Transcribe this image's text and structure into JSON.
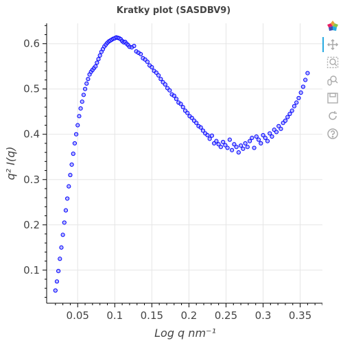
{
  "chart_data": {
    "type": "scatter",
    "title": "Kratky plot (SASDBV9)",
    "xlabel": "Log q nm⁻¹",
    "ylabel": "q² I(q)",
    "xlim": [
      0.01,
      0.38
    ],
    "ylim": [
      0.03,
      0.645
    ],
    "xticks": [
      0.05,
      0.1,
      0.15,
      0.2,
      0.25,
      0.3,
      0.35
    ],
    "xtick_labels": [
      "0.05",
      "0.1",
      "0.15",
      "0.2",
      "0.25",
      "0.3",
      "0.35"
    ],
    "yticks": [
      0.1,
      0.2,
      0.3,
      0.4,
      0.5,
      0.6
    ],
    "ytick_labels": [
      "0.1",
      "0.2",
      "0.3",
      "0.4",
      "0.5",
      "0.6"
    ],
    "grid": true,
    "legend": "none",
    "marker_color": "#0000ff",
    "series": [
      {
        "x": [
          0.02,
          0.022,
          0.024,
          0.026,
          0.028,
          0.03,
          0.032,
          0.034,
          0.036,
          0.038,
          0.04,
          0.042,
          0.044,
          0.046,
          0.048,
          0.05,
          0.052,
          0.054,
          0.056,
          0.058,
          0.06,
          0.062,
          0.064,
          0.066,
          0.068,
          0.07,
          0.072,
          0.074,
          0.076,
          0.078,
          0.08,
          0.082,
          0.084,
          0.086,
          0.088,
          0.09,
          0.092,
          0.094,
          0.096,
          0.098,
          0.1,
          0.102,
          0.104,
          0.106,
          0.108,
          0.11,
          0.112,
          0.114,
          0.116,
          0.118,
          0.12,
          0.123,
          0.126,
          0.129,
          0.132,
          0.135,
          0.138,
          0.141,
          0.144,
          0.147,
          0.15,
          0.153,
          0.156,
          0.159,
          0.162,
          0.165,
          0.168,
          0.171,
          0.174,
          0.177,
          0.18,
          0.183,
          0.186,
          0.189,
          0.192,
          0.195,
          0.198,
          0.201,
          0.204,
          0.207,
          0.21,
          0.213,
          0.216,
          0.219,
          0.222,
          0.225,
          0.228,
          0.231,
          0.234,
          0.237,
          0.24,
          0.243,
          0.246,
          0.249,
          0.252,
          0.255,
          0.258,
          0.261,
          0.264,
          0.267,
          0.27,
          0.273,
          0.276,
          0.279,
          0.282,
          0.285,
          0.288,
          0.291,
          0.294,
          0.297,
          0.3,
          0.303,
          0.306,
          0.309,
          0.312,
          0.315,
          0.318,
          0.321,
          0.324,
          0.327,
          0.33,
          0.333,
          0.336,
          0.339,
          0.342,
          0.345,
          0.348,
          0.351,
          0.354,
          0.357,
          0.36
        ],
        "y": [
          0.055,
          0.075,
          0.098,
          0.125,
          0.15,
          0.178,
          0.205,
          0.232,
          0.258,
          0.285,
          0.31,
          0.333,
          0.357,
          0.38,
          0.4,
          0.42,
          0.44,
          0.457,
          0.472,
          0.487,
          0.5,
          0.512,
          0.522,
          0.532,
          0.538,
          0.542,
          0.546,
          0.55,
          0.558,
          0.566,
          0.574,
          0.582,
          0.588,
          0.594,
          0.598,
          0.602,
          0.605,
          0.607,
          0.609,
          0.611,
          0.612,
          0.614,
          0.613,
          0.612,
          0.61,
          0.606,
          0.603,
          0.604,
          0.6,
          0.597,
          0.593,
          0.592,
          0.595,
          0.583,
          0.58,
          0.577,
          0.568,
          0.565,
          0.56,
          0.552,
          0.548,
          0.54,
          0.536,
          0.53,
          0.522,
          0.515,
          0.51,
          0.502,
          0.497,
          0.488,
          0.485,
          0.478,
          0.47,
          0.467,
          0.46,
          0.452,
          0.447,
          0.44,
          0.436,
          0.43,
          0.425,
          0.418,
          0.415,
          0.408,
          0.402,
          0.398,
          0.39,
          0.397,
          0.38,
          0.385,
          0.378,
          0.372,
          0.383,
          0.376,
          0.37,
          0.388,
          0.365,
          0.378,
          0.372,
          0.36,
          0.375,
          0.368,
          0.38,
          0.372,
          0.385,
          0.392,
          0.37,
          0.395,
          0.388,
          0.38,
          0.398,
          0.392,
          0.385,
          0.402,
          0.395,
          0.41,
          0.405,
          0.418,
          0.412,
          0.425,
          0.43,
          0.438,
          0.445,
          0.452,
          0.462,
          0.47,
          0.48,
          0.492,
          0.505,
          0.52,
          0.535
        ]
      }
    ]
  },
  "toolbar": {
    "tools": [
      "bokeh-logo-icon",
      "pan-icon",
      "box-zoom-icon",
      "wheel-zoom-icon",
      "save-icon",
      "reset-icon",
      "help-icon"
    ]
  }
}
